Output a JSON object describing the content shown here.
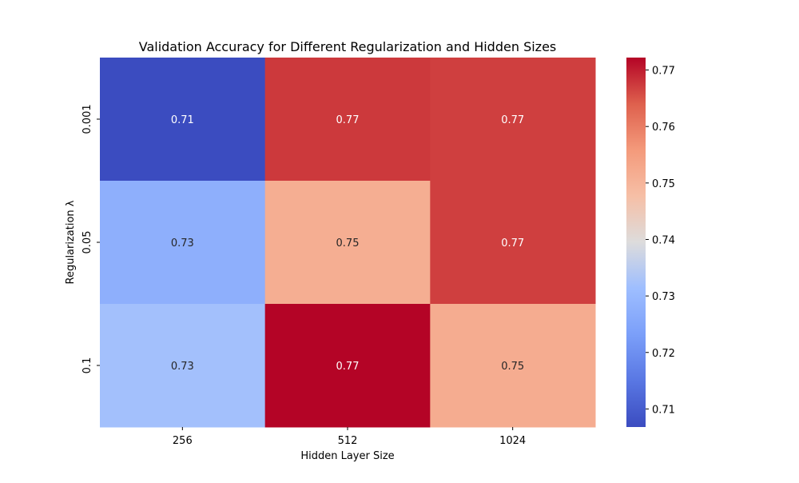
{
  "chart_data": {
    "type": "heatmap",
    "title": "Validation Accuracy for Different Regularization and Hidden Sizes",
    "xlabel": "Hidden Layer Size",
    "ylabel": "Regularization λ",
    "x_categories": [
      "256",
      "512",
      "1024"
    ],
    "y_categories": [
      "0.001",
      "0.05",
      "0.1"
    ],
    "values": [
      [
        0.7068,
        0.7675,
        0.767
      ],
      [
        0.7275,
        0.7515,
        0.767
      ],
      [
        0.732,
        0.7722,
        0.7518
      ]
    ],
    "value_labels": [
      [
        "0.71",
        "0.77",
        "0.77"
      ],
      [
        "0.73",
        "0.75",
        "0.77"
      ],
      [
        "0.73",
        "0.77",
        "0.75"
      ]
    ],
    "colormap": "coolwarm",
    "colorbar": {
      "range": [
        0.7068,
        0.7722
      ],
      "ticks": [
        0.71,
        0.72,
        0.73,
        0.74,
        0.75,
        0.76,
        0.77
      ],
      "tick_labels": [
        "0.71",
        "0.72",
        "0.73",
        "0.74",
        "0.75",
        "0.76",
        "0.77"
      ]
    }
  }
}
